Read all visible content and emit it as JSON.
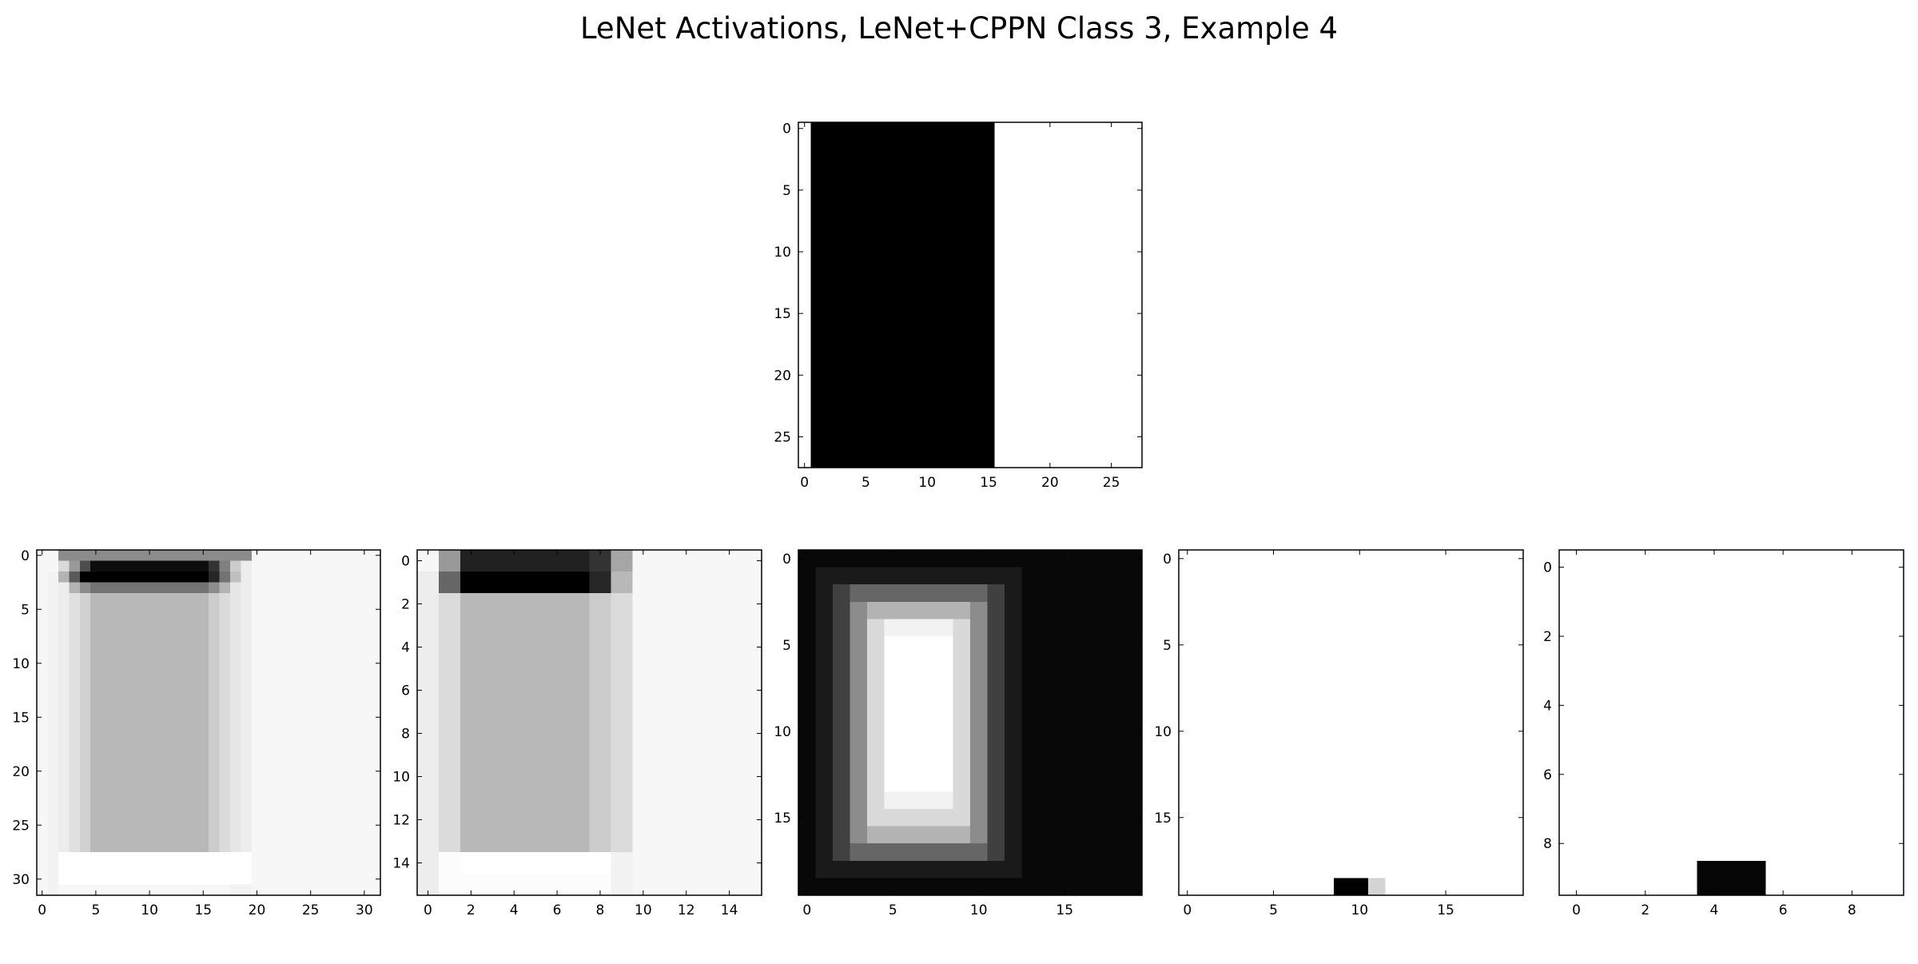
{
  "title": "LeNet Activations, LeNet+CPPN Class 3, Example 4",
  "colormap": "gray",
  "chart_data": [
    {
      "type": "heatmap",
      "panel": "input",
      "rows": 28,
      "cols": 28,
      "xticks": [
        0,
        5,
        10,
        15,
        20,
        25
      ],
      "yticks": [
        0,
        5,
        10,
        15,
        20,
        25
      ],
      "base_value": 1.0,
      "regions": [
        {
          "r0": 0,
          "r1": 27,
          "c0": 1,
          "c1": 15,
          "v": 0.0
        }
      ]
    },
    {
      "type": "heatmap",
      "panel": "activation-1",
      "rows": 32,
      "cols": 32,
      "xticks": [
        0,
        5,
        10,
        15,
        20,
        25,
        30
      ],
      "yticks": [
        0,
        5,
        10,
        15,
        20,
        25,
        30
      ],
      "base_value": 0.97,
      "regions": [
        {
          "r0": 2,
          "r1": 31,
          "c0": 1,
          "c1": 1,
          "v": 0.95
        },
        {
          "r0": 1,
          "r1": 29,
          "c0": 2,
          "c1": 2,
          "v": 0.93
        },
        {
          "r0": 1,
          "r1": 27,
          "c0": 3,
          "c1": 3,
          "v": 0.88
        },
        {
          "r0": 0,
          "r1": 27,
          "c0": 4,
          "c1": 4,
          "v": 0.82
        },
        {
          "r0": 0,
          "r1": 27,
          "c0": 5,
          "c1": 15,
          "v": 0.72
        },
        {
          "r0": 0,
          "r1": 27,
          "c0": 16,
          "c1": 16,
          "v": 0.8
        },
        {
          "r0": 0,
          "r1": 27,
          "c0": 17,
          "c1": 17,
          "v": 0.86
        },
        {
          "r0": 0,
          "r1": 28,
          "c0": 18,
          "c1": 18,
          "v": 0.9
        },
        {
          "r0": 0,
          "r1": 28,
          "c0": 19,
          "c1": 19,
          "v": 0.93
        },
        {
          "r0": 28,
          "r1": 30,
          "c0": 2,
          "c1": 19,
          "v": 1.0
        },
        {
          "r0": 31,
          "r1": 31,
          "c0": 18,
          "c1": 19,
          "v": 0.95
        },
        {
          "r0": 0,
          "r1": 0,
          "c0": 2,
          "c1": 19,
          "v": 0.55
        },
        {
          "r0": 1,
          "r1": 1,
          "c0": 2,
          "c1": 2,
          "v": 0.85
        },
        {
          "r0": 1,
          "r1": 1,
          "c0": 3,
          "c1": 3,
          "v": 0.6
        },
        {
          "r0": 1,
          "r1": 1,
          "c0": 4,
          "c1": 4,
          "v": 0.3
        },
        {
          "r0": 1,
          "r1": 1,
          "c0": 5,
          "c1": 15,
          "v": 0.05
        },
        {
          "r0": 1,
          "r1": 1,
          "c0": 16,
          "c1": 16,
          "v": 0.2
        },
        {
          "r0": 1,
          "r1": 1,
          "c0": 17,
          "c1": 17,
          "v": 0.5
        },
        {
          "r0": 1,
          "r1": 1,
          "c0": 18,
          "c1": 18,
          "v": 0.8
        },
        {
          "r0": 2,
          "r1": 2,
          "c0": 2,
          "c1": 2,
          "v": 0.7
        },
        {
          "r0": 2,
          "r1": 2,
          "c0": 3,
          "c1": 3,
          "v": 0.35
        },
        {
          "r0": 2,
          "r1": 2,
          "c0": 4,
          "c1": 15,
          "v": 0.0
        },
        {
          "r0": 2,
          "r1": 2,
          "c0": 16,
          "c1": 16,
          "v": 0.15
        },
        {
          "r0": 2,
          "r1": 2,
          "c0": 17,
          "c1": 17,
          "v": 0.45
        },
        {
          "r0": 2,
          "r1": 2,
          "c0": 18,
          "c1": 18,
          "v": 0.75
        },
        {
          "r0": 3,
          "r1": 3,
          "c0": 3,
          "c1": 3,
          "v": 0.7
        },
        {
          "r0": 3,
          "r1": 3,
          "c0": 4,
          "c1": 4,
          "v": 0.55
        },
        {
          "r0": 3,
          "r1": 3,
          "c0": 5,
          "c1": 15,
          "v": 0.45
        },
        {
          "r0": 3,
          "r1": 3,
          "c0": 16,
          "c1": 16,
          "v": 0.55
        },
        {
          "r0": 3,
          "r1": 3,
          "c0": 17,
          "c1": 17,
          "v": 0.7
        }
      ]
    },
    {
      "type": "heatmap",
      "panel": "activation-2",
      "rows": 16,
      "cols": 16,
      "xticks": [
        0,
        2,
        4,
        6,
        8,
        10,
        12,
        14
      ],
      "yticks": [
        0,
        2,
        4,
        6,
        8,
        10,
        12,
        14
      ],
      "base_value": 0.97,
      "regions": [
        {
          "r0": 1,
          "r1": 15,
          "c0": 0,
          "c1": 0,
          "v": 0.93
        },
        {
          "r0": 0,
          "r1": 0,
          "c0": 1,
          "c1": 1,
          "v": 0.6
        },
        {
          "r0": 1,
          "r1": 1,
          "c0": 1,
          "c1": 1,
          "v": 0.4
        },
        {
          "r0": 2,
          "r1": 13,
          "c0": 1,
          "c1": 1,
          "v": 0.86
        },
        {
          "r0": 14,
          "r1": 15,
          "c0": 1,
          "c1": 1,
          "v": 0.99
        },
        {
          "r0": 0,
          "r1": 0,
          "c0": 2,
          "c1": 8,
          "v": 0.13
        },
        {
          "r0": 1,
          "r1": 1,
          "c0": 2,
          "c1": 8,
          "v": 0.0
        },
        {
          "r0": 2,
          "r1": 13,
          "c0": 2,
          "c1": 8,
          "v": 0.72
        },
        {
          "r0": 14,
          "r1": 14,
          "c0": 2,
          "c1": 8,
          "v": 1.0
        },
        {
          "r0": 15,
          "r1": 15,
          "c0": 2,
          "c1": 8,
          "v": 0.99
        },
        {
          "r0": 0,
          "r1": 0,
          "c0": 8,
          "c1": 8,
          "v": 0.2
        },
        {
          "r0": 1,
          "r1": 1,
          "c0": 8,
          "c1": 8,
          "v": 0.15
        },
        {
          "r0": 2,
          "r1": 13,
          "c0": 8,
          "c1": 8,
          "v": 0.8
        },
        {
          "r0": 0,
          "r1": 0,
          "c0": 9,
          "c1": 9,
          "v": 0.65
        },
        {
          "r0": 1,
          "r1": 1,
          "c0": 9,
          "c1": 9,
          "v": 0.72
        },
        {
          "r0": 2,
          "r1": 13,
          "c0": 9,
          "c1": 9,
          "v": 0.86
        },
        {
          "r0": 14,
          "r1": 15,
          "c0": 9,
          "c1": 9,
          "v": 0.95
        }
      ]
    },
    {
      "type": "heatmap",
      "panel": "activation-3",
      "rows": 20,
      "cols": 20,
      "xticks": [
        0,
        5,
        10,
        15
      ],
      "yticks": [
        0,
        5,
        10,
        15
      ],
      "base_value": 0.03,
      "regions": [
        {
          "r0": 1,
          "r1": 18,
          "c0": 1,
          "c1": 12,
          "v": 0.1
        },
        {
          "r0": 2,
          "r1": 17,
          "c0": 2,
          "c1": 11,
          "v": 0.25
        },
        {
          "r0": 2,
          "r1": 17,
          "c0": 3,
          "c1": 10,
          "v": 0.4
        },
        {
          "r0": 3,
          "r1": 16,
          "c0": 3,
          "c1": 10,
          "v": 0.55
        },
        {
          "r0": 3,
          "r1": 16,
          "c0": 4,
          "c1": 9,
          "v": 0.7
        },
        {
          "r0": 4,
          "r1": 15,
          "c0": 4,
          "c1": 9,
          "v": 0.85
        },
        {
          "r0": 4,
          "r1": 14,
          "c0": 5,
          "c1": 8,
          "v": 0.95
        },
        {
          "r0": 5,
          "r1": 13,
          "c0": 5,
          "c1": 8,
          "v": 1.0
        }
      ]
    },
    {
      "type": "heatmap",
      "panel": "activation-4",
      "rows": 20,
      "cols": 20,
      "xticks": [
        0,
        5,
        10,
        15
      ],
      "yticks": [
        0,
        5,
        10,
        15
      ],
      "base_value": 1.0,
      "regions": [
        {
          "r0": 19,
          "r1": 19,
          "c0": 9,
          "c1": 10,
          "v": 0.0
        },
        {
          "r0": 19,
          "r1": 19,
          "c0": 11,
          "c1": 11,
          "v": 0.83
        }
      ]
    },
    {
      "type": "heatmap",
      "panel": "activation-5",
      "rows": 10,
      "cols": 10,
      "xticks": [
        0,
        2,
        4,
        6,
        8
      ],
      "yticks": [
        0,
        2,
        4,
        6,
        8
      ],
      "base_value": 1.0,
      "regions": [
        {
          "r0": 9,
          "r1": 9,
          "c0": 4,
          "c1": 5,
          "v": 0.02
        }
      ]
    }
  ]
}
